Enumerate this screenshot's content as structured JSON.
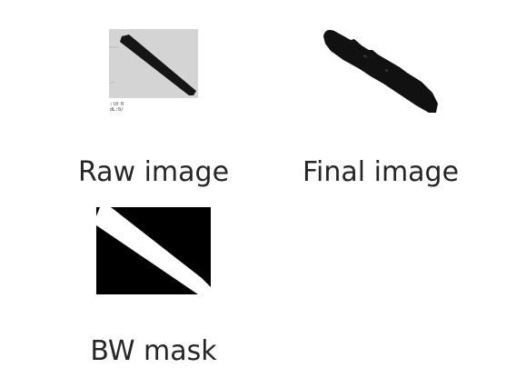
{
  "panels": {
    "raw": {
      "caption": "Raw image"
    },
    "final": {
      "caption": "Final image"
    },
    "bw": {
      "caption": "BW mask"
    }
  }
}
